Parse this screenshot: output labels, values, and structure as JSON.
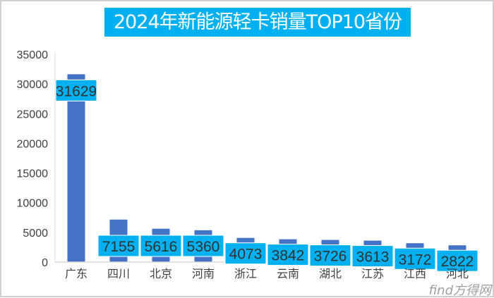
{
  "chart_data": {
    "type": "bar",
    "title": "2024年新能源轻卡销量TOP10省份",
    "categories": [
      "广东",
      "四川",
      "北京",
      "河南",
      "浙江",
      "云南",
      "湖北",
      "江苏",
      "江西",
      "河北"
    ],
    "values": [
      31629,
      7155,
      5616,
      5360,
      4073,
      3842,
      3726,
      3613,
      3172,
      2822
    ],
    "ylim": [
      0,
      35000
    ],
    "yticks": [
      0,
      5000,
      10000,
      15000,
      20000,
      25000,
      30000,
      35000
    ],
    "xlabel": "",
    "ylabel": "",
    "grid": false,
    "bar_color": "#4472c4",
    "label_bg": "#00b0f0"
  },
  "watermark": "find方得网"
}
